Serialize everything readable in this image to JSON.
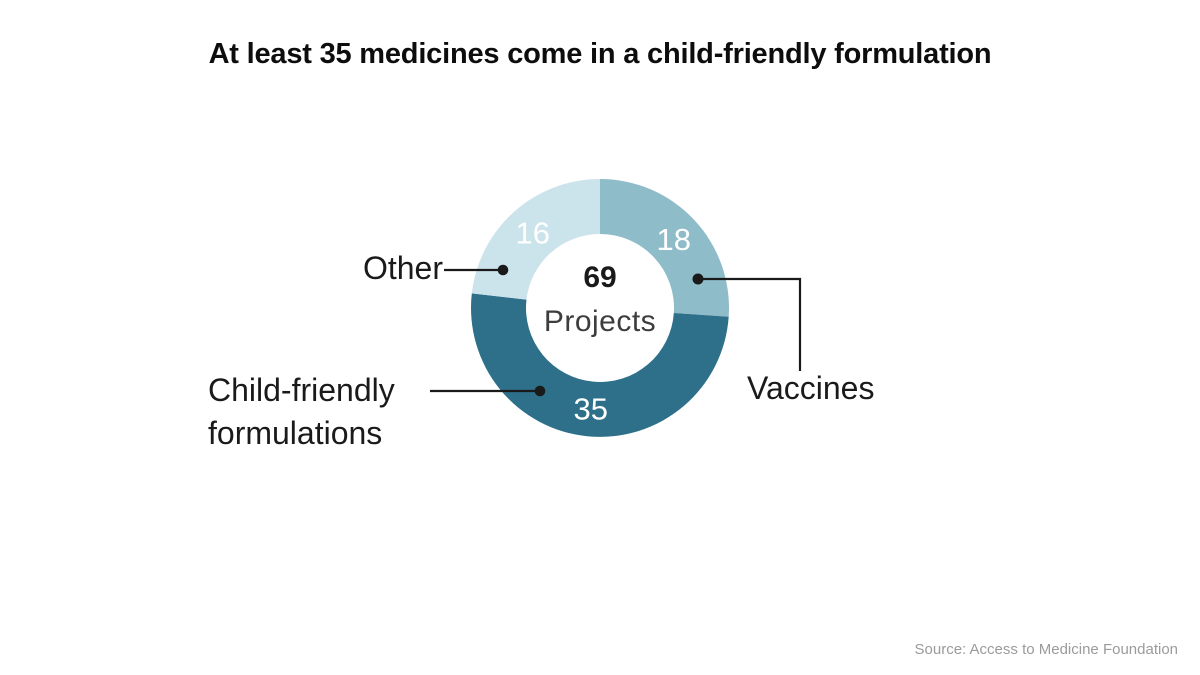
{
  "chart_data": {
    "type": "pie",
    "style": "donut",
    "title": "At least 35 medicines come in a child-friendly formulation",
    "total": 69,
    "center": {
      "value": "69",
      "label": "Projects"
    },
    "segments": [
      {
        "label": "Vaccines",
        "value": 18,
        "color": "#8fbcc9"
      },
      {
        "label": "Child-friendly formulations",
        "value": 35,
        "color": "#2e6f8a"
      },
      {
        "label": "Other",
        "value": 16,
        "color": "#cbe3ea"
      }
    ],
    "value_label_color": "#ffffff",
    "legend_position": "callout-labels-with-leader-lines",
    "start_angle_deg": 0,
    "direction": "clockwise",
    "source": "Source: Access to Medicine Foundation"
  }
}
